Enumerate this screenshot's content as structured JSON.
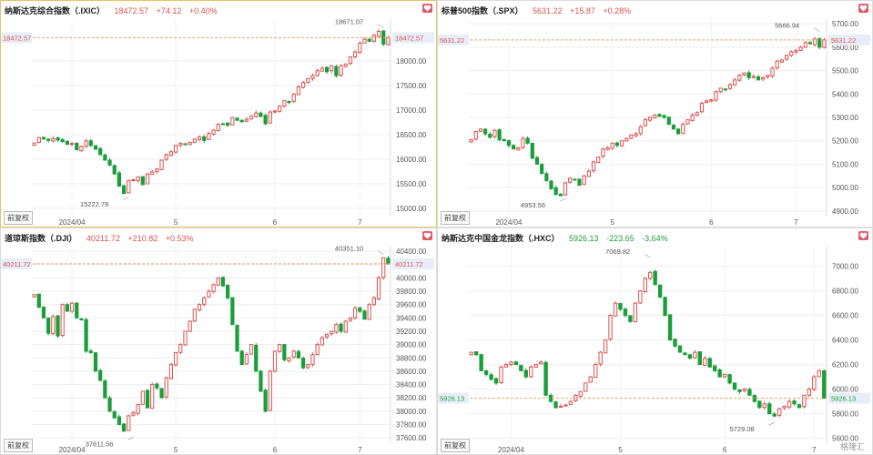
{
  "accent": {
    "up": "#d9534f",
    "down": "#1a9e3a",
    "active_border": "#e7c36a"
  },
  "restore_label": "前复权",
  "watermark": "格隆汇",
  "panels": [
    {
      "name": "纳斯达克综合指数（.IXIC）",
      "price": "18472.57",
      "change": "+74.12",
      "pct": "+0.40%",
      "color": "#d9534f",
      "active": true,
      "chart_data": {
        "type": "candlestick",
        "x_ticks": [
          "2024/04",
          "5",
          "6",
          "7"
        ],
        "x_tick_index": [
          8,
          30,
          51,
          69
        ],
        "y_ticks": [
          "18000.00",
          "17500.00",
          "17000.00",
          "16500.00",
          "16000.00",
          "15500.00",
          "15000.00"
        ],
        "ylim": [
          14850,
          18850
        ],
        "current_label": "18472.57",
        "current": 18472.57,
        "annotations": [
          {
            "text": "18671.07",
            "index": 74,
            "value": 18671.07
          },
          {
            "text": "15222.78",
            "index": 20,
            "value": 15222.78
          }
        ],
        "closes": [
          16330,
          16440,
          16410,
          16380,
          16420,
          16390,
          16360,
          16300,
          16320,
          16190,
          16260,
          16370,
          16280,
          16200,
          16090,
          15980,
          15880,
          15700,
          15450,
          15300,
          15560,
          15580,
          15640,
          15480,
          15700,
          15740,
          15800,
          15980,
          16090,
          16150,
          16280,
          16320,
          16300,
          16340,
          16410,
          16450,
          16380,
          16520,
          16590,
          16710,
          16720,
          16690,
          16850,
          16790,
          16760,
          16810,
          16880,
          16940,
          16870,
          16720,
          16960,
          16980,
          17080,
          17190,
          17160,
          17320,
          17470,
          17560,
          17640,
          17700,
          17800,
          17850,
          17780,
          17900,
          17700,
          17900,
          17930,
          18080,
          18180,
          18360,
          18440,
          18400,
          18520,
          18600,
          18340,
          18472.57
        ]
      }
    },
    {
      "name": "标普500指数（.SPX）",
      "price": "5631.22",
      "change": "+15.87",
      "pct": "+0.28%",
      "color": "#d9534f",
      "active": false,
      "chart_data": {
        "type": "candlestick",
        "x_ticks": [
          "2024/04",
          "5",
          "6",
          "7"
        ],
        "x_tick_index": [
          8,
          30,
          51,
          69
        ],
        "y_ticks": [
          "5700.00",
          "5600.00",
          "5500.00",
          "5400.00",
          "5300.00",
          "5200.00",
          "5100.00",
          "5000.00",
          "4900.00"
        ],
        "ylim": [
          4880,
          5720
        ],
        "current_label": "5631.22",
        "current": 5631.22,
        "annotations": [
          {
            "text": "5666.94",
            "index": 74,
            "value": 5666.94
          },
          {
            "text": "4953.56",
            "index": 20,
            "value": 4953.56
          }
        ],
        "closes": [
          5205,
          5240,
          5250,
          5230,
          5215,
          5245,
          5205,
          5200,
          5180,
          5165,
          5170,
          5210,
          5190,
          5125,
          5100,
          5060,
          5030,
          4995,
          4970,
          4965,
          5020,
          5040,
          5035,
          5010,
          5050,
          5070,
          5110,
          5130,
          5165,
          5170,
          5190,
          5180,
          5200,
          5210,
          5225,
          5230,
          5260,
          5290,
          5300,
          5310,
          5305,
          5300,
          5270,
          5250,
          5230,
          5270,
          5290,
          5310,
          5320,
          5360,
          5370,
          5375,
          5410,
          5425,
          5420,
          5440,
          5460,
          5480,
          5490,
          5470,
          5475,
          5460,
          5470,
          5480,
          5510,
          5540,
          5545,
          5565,
          5580,
          5585,
          5600,
          5620,
          5615,
          5635,
          5600,
          5631.22
        ]
      }
    },
    {
      "name": "道琼斯指数（.DJI）",
      "price": "40211.72",
      "change": "+210.82",
      "pct": "+0.53%",
      "color": "#d9534f",
      "active": false,
      "chart_data": {
        "type": "candlestick",
        "x_ticks": [
          "2024/04",
          "5",
          "6",
          "7"
        ],
        "x_tick_index": [
          8,
          30,
          51,
          69
        ],
        "y_ticks": [
          "40400.00",
          "40200.00",
          "40000.00",
          "39800.00",
          "39600.00",
          "39400.00",
          "39200.00",
          "39000.00",
          "38800.00",
          "38600.00",
          "38400.00",
          "38200.00",
          "38000.00",
          "37800.00",
          "37600.00"
        ],
        "ylim": [
          37520,
          40470
        ],
        "current_label": "40211.72",
        "current": 40211.72,
        "annotations": [
          {
            "text": "40351.10",
            "index": 74,
            "value": 40351.1
          },
          {
            "text": "37611.56",
            "index": 21,
            "value": 37611.56
          }
        ],
        "closes": [
          39750,
          39560,
          39400,
          39170,
          39420,
          39130,
          39600,
          39500,
          39620,
          39400,
          39370,
          38900,
          38880,
          38600,
          38460,
          38200,
          38000,
          37900,
          37800,
          37700,
          37930,
          37980,
          38100,
          38300,
          38050,
          38400,
          38350,
          38200,
          38500,
          38700,
          38880,
          39000,
          39200,
          39350,
          39530,
          39600,
          39700,
          39800,
          39900,
          40000,
          39880,
          39700,
          39300,
          38900,
          38700,
          38850,
          39000,
          38600,
          38300,
          38000,
          38600,
          38900,
          39000,
          38770,
          38800,
          38900,
          38800,
          38650,
          38700,
          38850,
          39000,
          39100,
          39150,
          39200,
          39300,
          39200,
          39350,
          39400,
          39550,
          39500,
          39380,
          39600,
          39700,
          40000,
          40300,
          40211.72
        ]
      }
    },
    {
      "name": "纳斯达克中国金龙指数（.HXC）",
      "price": "5926.13",
      "change": "-223.65",
      "pct": "-3.64%",
      "color": "#1a9e3a",
      "active": false,
      "chart_data": {
        "type": "candlestick",
        "x_ticks": [
          "2024/04",
          "5",
          "6",
          "7"
        ],
        "x_tick_index": [
          8,
          30,
          51,
          69
        ],
        "y_ticks": [
          "7000.00",
          "6800.00",
          "6600.00",
          "6400.00",
          "6200.00",
          "6000.00",
          "5800.00",
          "5600.00"
        ],
        "ylim": [
          5560,
          7160
        ],
        "current_label": "5926.13",
        "current": 5926.13,
        "annotations": [
          {
            "text": "7069.82",
            "index": 36,
            "value": 7069.82
          },
          {
            "text": "5729.08",
            "index": 61,
            "value": 5729.08
          }
        ],
        "closes": [
          6300,
          6280,
          6150,
          6120,
          6080,
          6050,
          6180,
          6200,
          6220,
          6200,
          6150,
          6100,
          6180,
          6200,
          6220,
          5950,
          5900,
          5850,
          5860,
          5870,
          5900,
          5950,
          5980,
          6050,
          6100,
          6200,
          6300,
          6400,
          6600,
          6700,
          6650,
          6600,
          6550,
          6700,
          6800,
          6900,
          6950,
          6850,
          6750,
          6600,
          6400,
          6350,
          6300,
          6280,
          6250,
          6300,
          6200,
          6250,
          6180,
          6150,
          6100,
          6120,
          6050,
          6000,
          5980,
          6000,
          5950,
          5900,
          5850,
          5880,
          5800,
          5780,
          5840,
          5860,
          5900,
          5880,
          5850,
          5950,
          6000,
          6100,
          6150,
          5926.13
        ]
      }
    }
  ]
}
